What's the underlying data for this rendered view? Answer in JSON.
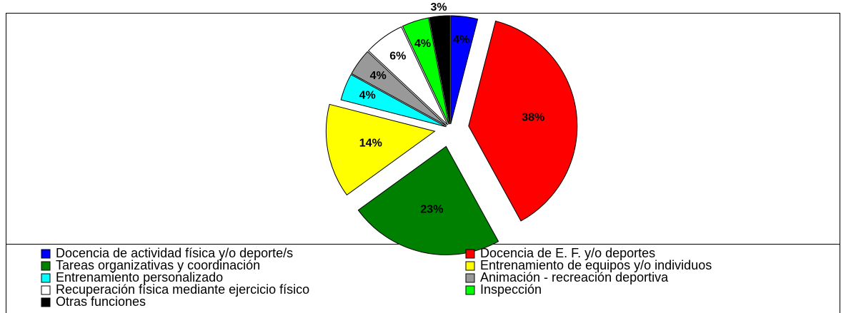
{
  "chart_data": {
    "type": "pie",
    "categories": [
      "Docencia de actividad física y/o deporte/s",
      "Docencia de E. F. y/o deportes",
      "Tareas organizativas y coordinación",
      "Entrenamiento de equipos y/o individuos",
      "Entrenamiento personalizado",
      "Animación - recreación deportiva",
      "Recuperación física mediante ejercicio físico",
      "Inspección",
      "Otras funciones"
    ],
    "values": [
      4,
      38,
      23,
      14,
      4,
      4,
      6,
      4,
      3
    ],
    "value_labels": [
      "4%",
      "38%",
      "23%",
      "14%",
      "4%",
      "4%",
      "6%",
      "4%",
      "3%"
    ],
    "colors": [
      "#0000ff",
      "#ff0000",
      "#008000",
      "#ffff00",
      "#00ffff",
      "#999999",
      "#ffffff",
      "#00ff00",
      "#000000"
    ],
    "legend": "bottom"
  }
}
